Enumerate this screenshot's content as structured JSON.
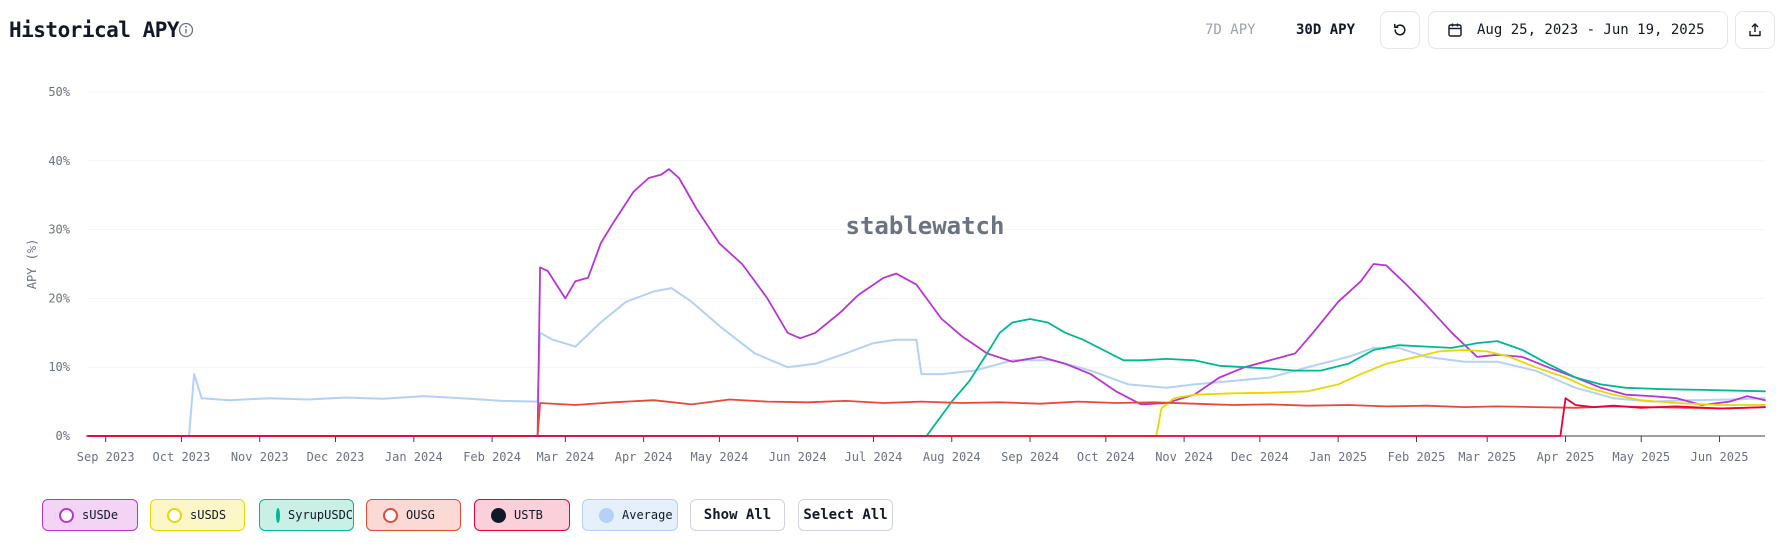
{
  "header": {
    "title": "Historical APY",
    "tab_7d": "7D APY",
    "tab_30d": "30D APY",
    "active_tab": "30D APY",
    "date_range": "Aug 25, 2023 - Jun 19, 2025"
  },
  "watermark": "stablewatch",
  "legend": {
    "items": [
      {
        "label": "sUSDe",
        "color": "#b935d3",
        "bg": "#f3d4f7",
        "icon": "susde-coin-icon"
      },
      {
        "label": "sUSDS",
        "color": "#e8d800",
        "bg": "#fdf7c8",
        "icon": "susds-coin-icon"
      },
      {
        "label": "SyrupUSDC",
        "color": "#00b894",
        "bg": "#c8f0e4",
        "icon": "syrupusdc-coin-icon"
      },
      {
        "label": "OUSG",
        "color": "#e8483a",
        "bg": "#fbd9d4",
        "icon": "ousg-coin-icon"
      },
      {
        "label": "USTB",
        "color": "#e8003d",
        "bg": "#fbd0da",
        "icon": "ustb-coin-icon"
      },
      {
        "label": "Average",
        "color": "#b4d1f6",
        "bg": "#e6f0fc",
        "icon": "average-dot-icon"
      }
    ],
    "show_all": "Show All",
    "select_all": "Select All"
  },
  "chart_data": {
    "type": "line",
    "ylabel": "APY (%)",
    "xlabel": "",
    "ylim": [
      0,
      50
    ],
    "yticks": [
      "0%",
      "10%",
      "20%",
      "30%",
      "40%",
      "50%"
    ],
    "xticks": [
      "Sep 2023",
      "Oct 2023",
      "Nov 2023",
      "Dec 2023",
      "Jan 2024",
      "Feb 2024",
      "Mar 2024",
      "Apr 2024",
      "May 2024",
      "Jun 2024",
      "Jul 2024",
      "Aug 2024",
      "Sep 2024",
      "Oct 2024",
      "Nov 2024",
      "Dec 2024",
      "Jan 2025",
      "Feb 2025",
      "Mar 2025",
      "Apr 2025",
      "May 2025",
      "Jun 2025"
    ],
    "xlim": [
      "2023-08-25",
      "2025-06-19"
    ],
    "grid": true,
    "series": [
      {
        "name": "sUSDe",
        "color": "#b935d3",
        "points": [
          [
            "2023-08-25",
            0
          ],
          [
            "2024-02-19",
            0
          ],
          [
            "2024-02-20",
            24.5
          ],
          [
            "2024-02-23",
            24
          ],
          [
            "2024-03-01",
            20
          ],
          [
            "2024-03-05",
            22.5
          ],
          [
            "2024-03-10",
            23
          ],
          [
            "2024-03-15",
            28
          ],
          [
            "2024-03-20",
            31
          ],
          [
            "2024-03-28",
            35.5
          ],
          [
            "2024-04-03",
            37.5
          ],
          [
            "2024-04-08",
            38
          ],
          [
            "2024-04-11",
            38.8
          ],
          [
            "2024-04-15",
            37.5
          ],
          [
            "2024-04-22",
            33
          ],
          [
            "2024-05-01",
            28
          ],
          [
            "2024-05-10",
            25
          ],
          [
            "2024-05-20",
            20
          ],
          [
            "2024-05-28",
            15
          ],
          [
            "2024-06-02",
            14.2
          ],
          [
            "2024-06-08",
            15
          ],
          [
            "2024-06-18",
            18
          ],
          [
            "2024-06-25",
            20.5
          ],
          [
            "2024-07-05",
            23
          ],
          [
            "2024-07-10",
            23.6
          ],
          [
            "2024-07-18",
            22
          ],
          [
            "2024-07-28",
            17
          ],
          [
            "2024-08-05",
            14.5
          ],
          [
            "2024-08-15",
            12
          ],
          [
            "2024-08-25",
            10.8
          ],
          [
            "2024-09-05",
            11.5
          ],
          [
            "2024-09-15",
            10.5
          ],
          [
            "2024-09-25",
            9
          ],
          [
            "2024-10-05",
            6.5
          ],
          [
            "2024-10-15",
            4.6
          ],
          [
            "2024-10-25",
            4.8
          ],
          [
            "2024-11-05",
            6
          ],
          [
            "2024-11-15",
            8.5
          ],
          [
            "2024-11-25",
            10
          ],
          [
            "2024-12-05",
            11
          ],
          [
            "2024-12-15",
            12
          ],
          [
            "2024-12-22",
            15
          ],
          [
            "2025-01-01",
            19.5
          ],
          [
            "2025-01-10",
            22.5
          ],
          [
            "2025-01-15",
            25
          ],
          [
            "2025-01-20",
            24.8
          ],
          [
            "2025-01-28",
            22
          ],
          [
            "2025-02-05",
            19
          ],
          [
            "2025-02-15",
            15
          ],
          [
            "2025-02-25",
            11.5
          ],
          [
            "2025-03-05",
            11.8
          ],
          [
            "2025-03-15",
            11.5
          ],
          [
            "2025-03-25",
            10
          ],
          [
            "2025-04-05",
            8.5
          ],
          [
            "2025-04-15",
            7
          ],
          [
            "2025-04-25",
            6
          ],
          [
            "2025-05-05",
            5.8
          ],
          [
            "2025-05-15",
            5.5
          ],
          [
            "2025-05-25",
            4.5
          ],
          [
            "2025-06-05",
            5
          ],
          [
            "2025-06-12",
            5.8
          ],
          [
            "2025-06-19",
            5.2
          ]
        ]
      },
      {
        "name": "sUSDS",
        "color": "#e8d800",
        "points": [
          [
            "2023-08-25",
            0
          ],
          [
            "2024-10-21",
            0
          ],
          [
            "2024-10-23",
            4
          ],
          [
            "2024-10-28",
            5.5
          ],
          [
            "2024-11-05",
            6
          ],
          [
            "2024-11-20",
            6.2
          ],
          [
            "2024-12-05",
            6.3
          ],
          [
            "2024-12-20",
            6.5
          ],
          [
            "2025-01-01",
            7.5
          ],
          [
            "2025-01-10",
            9
          ],
          [
            "2025-01-20",
            10.5
          ],
          [
            "2025-02-01",
            11.5
          ],
          [
            "2025-02-10",
            12.3
          ],
          [
            "2025-02-20",
            12.5
          ],
          [
            "2025-03-01",
            12.3
          ],
          [
            "2025-03-10",
            11.5
          ],
          [
            "2025-03-20",
            10
          ],
          [
            "2025-04-01",
            8.5
          ],
          [
            "2025-04-10",
            7
          ],
          [
            "2025-04-20",
            6
          ],
          [
            "2025-05-01",
            5.2
          ],
          [
            "2025-05-15",
            4.8
          ],
          [
            "2025-06-01",
            4.5
          ],
          [
            "2025-06-19",
            4.5
          ]
        ]
      },
      {
        "name": "SyrupUSDC",
        "color": "#00b894",
        "points": [
          [
            "2023-08-25",
            0
          ],
          [
            "2024-07-22",
            0
          ],
          [
            "2024-07-25",
            1.5
          ],
          [
            "2024-08-01",
            5
          ],
          [
            "2024-08-08",
            8
          ],
          [
            "2024-08-15",
            12
          ],
          [
            "2024-08-20",
            15
          ],
          [
            "2024-08-25",
            16.5
          ],
          [
            "2024-09-01",
            17
          ],
          [
            "2024-09-08",
            16.5
          ],
          [
            "2024-09-15",
            15
          ],
          [
            "2024-09-22",
            14
          ],
          [
            "2024-09-30",
            12.5
          ],
          [
            "2024-10-08",
            11
          ],
          [
            "2024-10-15",
            11
          ],
          [
            "2024-10-25",
            11.2
          ],
          [
            "2024-11-05",
            11
          ],
          [
            "2024-11-15",
            10.2
          ],
          [
            "2024-11-25",
            10
          ],
          [
            "2024-12-05",
            9.8
          ],
          [
            "2024-12-15",
            9.5
          ],
          [
            "2024-12-25",
            9.5
          ],
          [
            "2025-01-05",
            10.5
          ],
          [
            "2025-01-15",
            12.5
          ],
          [
            "2025-01-25",
            13.2
          ],
          [
            "2025-02-05",
            13
          ],
          [
            "2025-02-15",
            12.8
          ],
          [
            "2025-02-25",
            13.5
          ],
          [
            "2025-03-05",
            13.8
          ],
          [
            "2025-03-15",
            12.5
          ],
          [
            "2025-03-25",
            10.5
          ],
          [
            "2025-04-05",
            8.5
          ],
          [
            "2025-04-15",
            7.5
          ],
          [
            "2025-04-25",
            7
          ],
          [
            "2025-05-10",
            6.8
          ],
          [
            "2025-05-25",
            6.7
          ],
          [
            "2025-06-19",
            6.5
          ]
        ]
      },
      {
        "name": "OUSG",
        "color": "#e8483a",
        "points": [
          [
            "2023-08-25",
            0
          ],
          [
            "2024-02-19",
            0
          ],
          [
            "2024-02-20",
            4.8
          ],
          [
            "2024-03-05",
            4.5
          ],
          [
            "2024-03-20",
            4.9
          ],
          [
            "2024-04-05",
            5.2
          ],
          [
            "2024-04-20",
            4.6
          ],
          [
            "2024-05-05",
            5.3
          ],
          [
            "2024-05-20",
            5
          ],
          [
            "2024-06-05",
            4.9
          ],
          [
            "2024-06-20",
            5.1
          ],
          [
            "2024-07-05",
            4.8
          ],
          [
            "2024-07-20",
            5
          ],
          [
            "2024-08-05",
            4.8
          ],
          [
            "2024-08-20",
            4.9
          ],
          [
            "2024-09-05",
            4.7
          ],
          [
            "2024-09-20",
            5
          ],
          [
            "2024-10-05",
            4.8
          ],
          [
            "2024-10-20",
            4.9
          ],
          [
            "2024-11-05",
            4.7
          ],
          [
            "2024-11-20",
            4.5
          ],
          [
            "2024-12-05",
            4.6
          ],
          [
            "2024-12-20",
            4.4
          ],
          [
            "2025-01-05",
            4.5
          ],
          [
            "2025-01-20",
            4.3
          ],
          [
            "2025-02-05",
            4.4
          ],
          [
            "2025-02-20",
            4.2
          ],
          [
            "2025-03-05",
            4.3
          ],
          [
            "2025-03-20",
            4.2
          ],
          [
            "2025-04-05",
            4.1
          ],
          [
            "2025-04-20",
            4.3
          ],
          [
            "2025-05-05",
            4.2
          ],
          [
            "2025-05-20",
            4.1
          ],
          [
            "2025-06-05",
            4
          ],
          [
            "2025-06-19",
            4.2
          ]
        ]
      },
      {
        "name": "USTB",
        "color": "#e8003d",
        "points": [
          [
            "2023-08-25",
            0
          ],
          [
            "2025-03-30",
            0
          ],
          [
            "2025-04-01",
            5.5
          ],
          [
            "2025-04-05",
            4.5
          ],
          [
            "2025-04-12",
            4.2
          ],
          [
            "2025-04-20",
            4.4
          ],
          [
            "2025-05-01",
            4.1
          ],
          [
            "2025-05-15",
            4.3
          ],
          [
            "2025-06-01",
            4
          ],
          [
            "2025-06-19",
            4.2
          ]
        ]
      },
      {
        "name": "Average",
        "color": "#b4d1f6",
        "points": [
          [
            "2023-08-25",
            0
          ],
          [
            "2023-10-04",
            0
          ],
          [
            "2023-10-06",
            9
          ],
          [
            "2023-10-09",
            5.5
          ],
          [
            "2023-10-20",
            5.2
          ],
          [
            "2023-11-05",
            5.5
          ],
          [
            "2023-11-20",
            5.3
          ],
          [
            "2023-12-05",
            5.6
          ],
          [
            "2023-12-20",
            5.4
          ],
          [
            "2024-01-05",
            5.8
          ],
          [
            "2024-01-20",
            5.5
          ],
          [
            "2024-02-05",
            5.1
          ],
          [
            "2024-02-19",
            5
          ],
          [
            "2024-02-20",
            15
          ],
          [
            "2024-02-25",
            14
          ],
          [
            "2024-03-05",
            13
          ],
          [
            "2024-03-15",
            16.5
          ],
          [
            "2024-03-25",
            19.5
          ],
          [
            "2024-04-05",
            21
          ],
          [
            "2024-04-12",
            21.5
          ],
          [
            "2024-04-20",
            19.5
          ],
          [
            "2024-05-01",
            16
          ],
          [
            "2024-05-15",
            12
          ],
          [
            "2024-05-28",
            10
          ],
          [
            "2024-06-08",
            10.5
          ],
          [
            "2024-06-20",
            12
          ],
          [
            "2024-07-01",
            13.5
          ],
          [
            "2024-07-10",
            14
          ],
          [
            "2024-07-18",
            14
          ],
          [
            "2024-07-20",
            9
          ],
          [
            "2024-07-28",
            9
          ],
          [
            "2024-08-10",
            9.5
          ],
          [
            "2024-08-25",
            11
          ],
          [
            "2024-09-10",
            11
          ],
          [
            "2024-09-25",
            9.5
          ],
          [
            "2024-10-10",
            7.5
          ],
          [
            "2024-10-25",
            7
          ],
          [
            "2024-11-05",
            7.5
          ],
          [
            "2024-11-20",
            8
          ],
          [
            "2024-12-05",
            8.5
          ],
          [
            "2024-12-20",
            10
          ],
          [
            "2025-01-05",
            11.5
          ],
          [
            "2025-01-15",
            12.8
          ],
          [
            "2025-01-25",
            12.8
          ],
          [
            "2025-02-05",
            11.5
          ],
          [
            "2025-02-20",
            10.8
          ],
          [
            "2025-03-05",
            10.8
          ],
          [
            "2025-03-20",
            9.5
          ],
          [
            "2025-04-05",
            7
          ],
          [
            "2025-04-20",
            5.5
          ],
          [
            "2025-05-05",
            5
          ],
          [
            "2025-05-20",
            5.2
          ],
          [
            "2025-06-05",
            5.3
          ],
          [
            "2025-06-19",
            5.5
          ]
        ]
      }
    ]
  }
}
